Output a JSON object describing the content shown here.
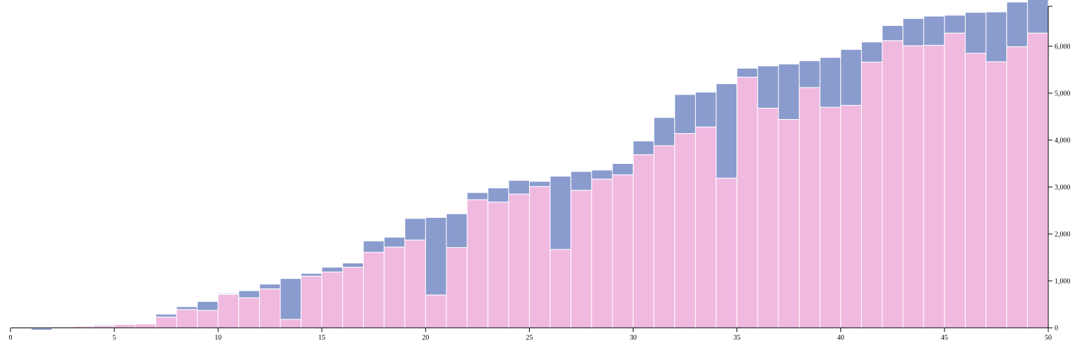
{
  "chart_data": {
    "type": "bar",
    "stacked": true,
    "x": [
      1,
      2,
      3,
      4,
      5,
      6,
      7,
      8,
      9,
      10,
      11,
      12,
      13,
      14,
      15,
      16,
      17,
      18,
      19,
      20,
      21,
      22,
      23,
      24,
      25,
      26,
      27,
      28,
      29,
      30,
      31,
      32,
      33,
      34,
      35,
      36,
      37,
      38,
      39,
      40,
      41,
      42,
      43,
      44,
      45,
      46,
      47,
      48,
      49,
      50
    ],
    "xlim": [
      0,
      50
    ],
    "ylim": [
      0,
      6850
    ],
    "x_ticks": [
      "0",
      "5",
      "10",
      "15",
      "20",
      "25",
      "30",
      "35",
      "40",
      "45",
      "50"
    ],
    "y_ticks": [
      "0",
      "1,000",
      "2,000",
      "3,000",
      "4,000",
      "5,000",
      "6,000"
    ],
    "grid": false,
    "legend": "none",
    "series": [
      {
        "color": "#f0bae0",
        "values": [
          -20,
          -5,
          20,
          30,
          40,
          70,
          80,
          230,
          390,
          370,
          710,
          640,
          830,
          180,
          1100,
          1190,
          1290,
          1610,
          1720,
          1870,
          700,
          1710,
          2730,
          2680,
          2850,
          3010,
          1670,
          2930,
          3170,
          3260,
          3690,
          3880,
          4140,
          4280,
          3190,
          5340,
          4680,
          4440,
          5120,
          4700,
          4740,
          5660,
          6120,
          6010,
          6020,
          6280,
          5850,
          5670,
          5990,
          6280
        ]
      },
      {
        "color": "#8a9bce",
        "values": [
          0,
          -45,
          0,
          0,
          20,
          0,
          0,
          60,
          60,
          190,
          20,
          150,
          100,
          870,
          60,
          100,
          90,
          240,
          210,
          460,
          1650,
          720,
          150,
          300,
          290,
          110,
          1560,
          400,
          190,
          240,
          290,
          600,
          830,
          740,
          2010,
          190,
          900,
          1180,
          570,
          1060,
          1190,
          430,
          320,
          580,
          620,
          380,
          870,
          1060,
          950,
          740
        ]
      }
    ]
  }
}
